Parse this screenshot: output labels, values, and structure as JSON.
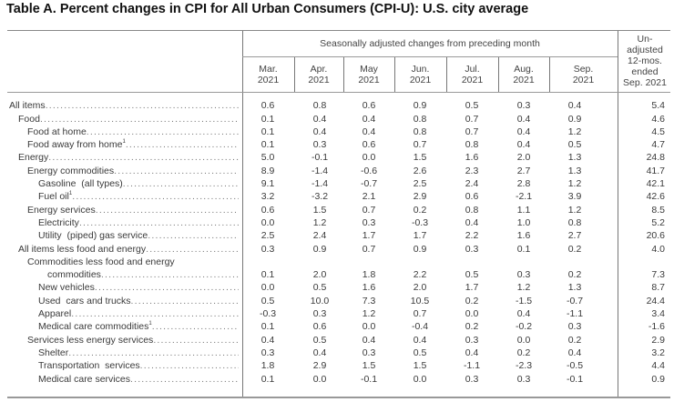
{
  "title": "Table A. Percent changes in CPI for All Urban Consumers (CPI-U): U.S. city average",
  "header": {
    "group": "Seasonally adjusted changes from preceding month",
    "months": [
      {
        "line1": "Mar.",
        "line2": "2021"
      },
      {
        "line1": "Apr.",
        "line2": "2021"
      },
      {
        "line1": "May",
        "line2": "2021"
      },
      {
        "line1": "Jun.",
        "line2": "2021"
      },
      {
        "line1": "Jul.",
        "line2": "2021"
      },
      {
        "line1": "Aug.",
        "line2": "2021"
      },
      {
        "line1": "Sep.",
        "line2": "2021"
      }
    ],
    "unadjusted": [
      "Un-",
      "adjusted",
      "12-mos.",
      "ended",
      "Sep. 2021"
    ]
  },
  "rows": [
    {
      "label": "All items",
      "level": 0,
      "values": [
        "0.6",
        "0.8",
        "0.6",
        "0.9",
        "0.5",
        "0.3",
        "0.4",
        "5.4"
      ]
    },
    {
      "label": "Food",
      "level": 1,
      "values": [
        "0.1",
        "0.4",
        "0.4",
        "0.8",
        "0.7",
        "0.4",
        "0.9",
        "4.6"
      ]
    },
    {
      "label": "Food at home",
      "level": 2,
      "values": [
        "0.1",
        "0.4",
        "0.4",
        "0.8",
        "0.7",
        "0.4",
        "1.2",
        "4.5"
      ]
    },
    {
      "label": "Food away from home",
      "footnote": "1",
      "level": 2,
      "values": [
        "0.1",
        "0.3",
        "0.6",
        "0.7",
        "0.8",
        "0.4",
        "0.5",
        "4.7"
      ]
    },
    {
      "label": "Energy",
      "level": 1,
      "values": [
        "5.0",
        "-0.1",
        "0.0",
        "1.5",
        "1.6",
        "2.0",
        "1.3",
        "24.8"
      ]
    },
    {
      "label": "Energy commodities",
      "level": 2,
      "values": [
        "8.9",
        "-1.4",
        "-0.6",
        "2.6",
        "2.3",
        "2.7",
        "1.3",
        "41.7"
      ]
    },
    {
      "label": "Gasoline  (all types)",
      "level": 3,
      "values": [
        "9.1",
        "-1.4",
        "-0.7",
        "2.5",
        "2.4",
        "2.8",
        "1.2",
        "42.1"
      ]
    },
    {
      "label": "Fuel oil",
      "footnote": "1",
      "level": 3,
      "values": [
        "3.2",
        "-3.2",
        "2.1",
        "2.9",
        "0.6",
        "-2.1",
        "3.9",
        "42.6"
      ]
    },
    {
      "label": "Energy services",
      "level": 2,
      "values": [
        "0.6",
        "1.5",
        "0.7",
        "0.2",
        "0.8",
        "1.1",
        "1.2",
        "8.5"
      ]
    },
    {
      "label": "Electricity",
      "level": 3,
      "values": [
        "0.0",
        "1.2",
        "0.3",
        "-0.3",
        "0.4",
        "1.0",
        "0.8",
        "5.2"
      ]
    },
    {
      "label": "Utility  (piped) gas service",
      "level": 3,
      "values": [
        "2.5",
        "2.4",
        "1.7",
        "1.7",
        "2.2",
        "1.6",
        "2.7",
        "20.6"
      ]
    },
    {
      "label": "All items less food and energy",
      "level": 1,
      "values": [
        "0.3",
        "0.9",
        "0.7",
        "0.9",
        "0.3",
        "0.1",
        "0.2",
        "4.0"
      ]
    },
    {
      "label_line1": "Commodities less food and energy",
      "label": "commodities",
      "level": 2,
      "values": [
        "0.1",
        "2.0",
        "1.8",
        "2.2",
        "0.5",
        "0.3",
        "0.2",
        "7.3"
      ]
    },
    {
      "label": "New vehicles",
      "level": 3,
      "values": [
        "0.0",
        "0.5",
        "1.6",
        "2.0",
        "1.7",
        "1.2",
        "1.3",
        "8.7"
      ]
    },
    {
      "label": "Used  cars and trucks",
      "level": 3,
      "values": [
        "0.5",
        "10.0",
        "7.3",
        "10.5",
        "0.2",
        "-1.5",
        "-0.7",
        "24.4"
      ]
    },
    {
      "label": "Apparel",
      "level": 3,
      "values": [
        "-0.3",
        "0.3",
        "1.2",
        "0.7",
        "0.0",
        "0.4",
        "-1.1",
        "3.4"
      ]
    },
    {
      "label": "Medical care commodities",
      "footnote": "1",
      "level": 3,
      "values": [
        "0.1",
        "0.6",
        "0.0",
        "-0.4",
        "0.2",
        "-0.2",
        "0.3",
        "-1.6"
      ]
    },
    {
      "label": "Services less energy services",
      "level": 2,
      "values": [
        "0.4",
        "0.5",
        "0.4",
        "0.4",
        "0.3",
        "0.0",
        "0.2",
        "2.9"
      ]
    },
    {
      "label": "Shelter",
      "level": 3,
      "values": [
        "0.3",
        "0.4",
        "0.3",
        "0.5",
        "0.4",
        "0.2",
        "0.4",
        "3.2"
      ]
    },
    {
      "label": "Transportation  services",
      "level": 3,
      "values": [
        "1.8",
        "2.9",
        "1.5",
        "1.5",
        "-1.1",
        "-2.3",
        "-0.5",
        "4.4"
      ]
    },
    {
      "label": "Medical care services",
      "level": 3,
      "values": [
        "0.1",
        "0.0",
        "-0.1",
        "0.0",
        "0.3",
        "0.3",
        "-0.1",
        "0.9"
      ]
    }
  ]
}
